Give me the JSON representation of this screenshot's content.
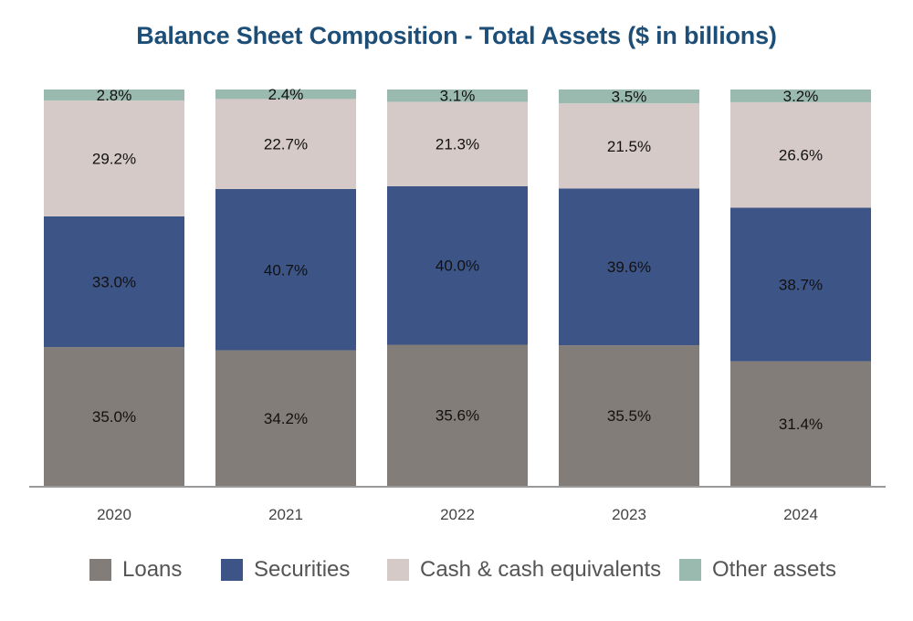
{
  "chart_data": {
    "type": "bar",
    "stacked": true,
    "title": "Balance Sheet Composition - Total Assets ($ in billions)",
    "categories": [
      "2020",
      "2021",
      "2022",
      "2023",
      "2024"
    ],
    "series": [
      {
        "name": "Loans",
        "color": "#837d79",
        "values": [
          35.0,
          34.2,
          35.6,
          35.5,
          31.4
        ],
        "labels": [
          "35.0%",
          "34.2%",
          "35.6%",
          "35.5%",
          "31.4%"
        ]
      },
      {
        "name": "Securities",
        "color": "#3d5486",
        "values": [
          33.0,
          40.7,
          40.0,
          39.6,
          38.7
        ],
        "labels": [
          "33.0%",
          "40.7%",
          "40.0%",
          "39.6%",
          "38.7%"
        ]
      },
      {
        "name": "Cash & cash equivalents",
        "color": "#d6cac8",
        "values": [
          29.2,
          22.7,
          21.3,
          21.5,
          26.6
        ],
        "labels": [
          "29.2%",
          "22.7%",
          "21.3%",
          "21.5%",
          "26.6%"
        ]
      },
      {
        "name": "Other assets",
        "color": "#9bbaaf",
        "values": [
          2.8,
          2.4,
          3.1,
          3.5,
          3.2
        ],
        "labels": [
          "2.8%",
          "2.4%",
          "3.1%",
          "3.5%",
          "3.2%"
        ]
      }
    ],
    "ylim": [
      0,
      100
    ],
    "xlabel": "",
    "ylabel": "",
    "grid": false,
    "legend_position": "bottom"
  }
}
